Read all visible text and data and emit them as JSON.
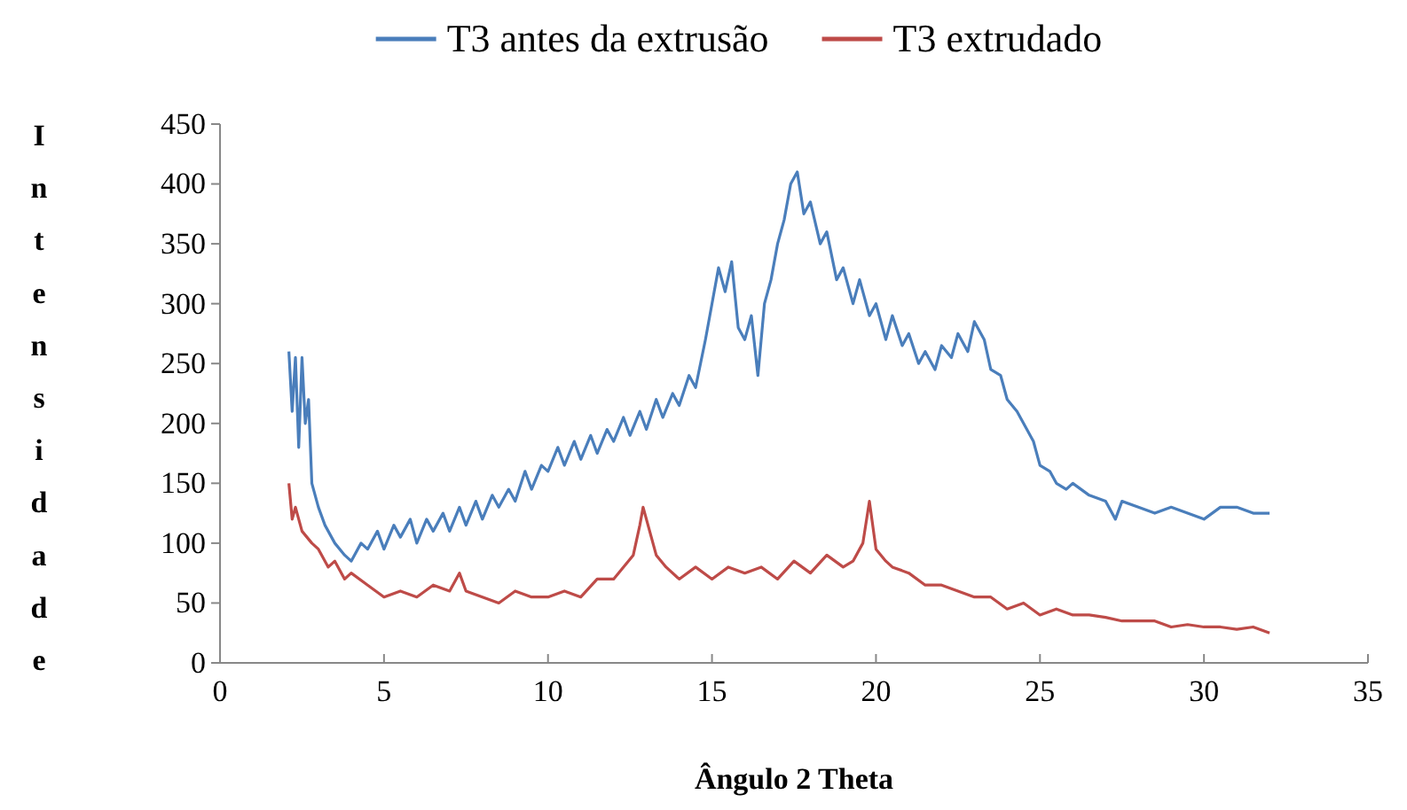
{
  "chart_data": {
    "type": "line",
    "xlabel": "Ângulo 2 Theta",
    "ylabel": "Intensidade",
    "legend": "top",
    "grid": false,
    "marker": "none",
    "line_style": "solid",
    "xlim": [
      0,
      35
    ],
    "xticks": [
      0,
      5,
      10,
      15,
      20,
      25,
      30,
      35
    ],
    "ylim": [
      0,
      450
    ],
    "yticks": [
      0,
      50,
      100,
      150,
      200,
      250,
      300,
      350,
      400,
      450
    ],
    "series": [
      {
        "name": "T3 antes da extrusão",
        "color": "#4a7ebb",
        "x": [
          2.1,
          2.2,
          2.3,
          2.4,
          2.5,
          2.6,
          2.7,
          2.8,
          3.0,
          3.2,
          3.5,
          3.8,
          4.0,
          4.3,
          4.5,
          4.8,
          5.0,
          5.3,
          5.5,
          5.8,
          6.0,
          6.3,
          6.5,
          6.8,
          7.0,
          7.3,
          7.5,
          7.8,
          8.0,
          8.3,
          8.5,
          8.8,
          9.0,
          9.3,
          9.5,
          9.8,
          10.0,
          10.3,
          10.5,
          10.8,
          11.0,
          11.3,
          11.5,
          11.8,
          12.0,
          12.3,
          12.5,
          12.8,
          13.0,
          13.3,
          13.5,
          13.8,
          14.0,
          14.3,
          14.5,
          14.8,
          15.0,
          15.2,
          15.4,
          15.6,
          15.8,
          16.0,
          16.2,
          16.4,
          16.6,
          16.8,
          17.0,
          17.2,
          17.4,
          17.6,
          17.8,
          18.0,
          18.3,
          18.5,
          18.8,
          19.0,
          19.3,
          19.5,
          19.8,
          20.0,
          20.3,
          20.5,
          20.8,
          21.0,
          21.3,
          21.5,
          21.8,
          22.0,
          22.3,
          22.5,
          22.8,
          23.0,
          23.3,
          23.5,
          23.8,
          24.0,
          24.3,
          24.5,
          24.8,
          25.0,
          25.3,
          25.5,
          25.8,
          26.0,
          26.5,
          27.0,
          27.3,
          27.5,
          28.0,
          28.5,
          29.0,
          29.5,
          30.0,
          30.5,
          31.0,
          31.5,
          32.0
        ],
        "values": [
          260,
          210,
          255,
          180,
          255,
          200,
          220,
          150,
          130,
          115,
          100,
          90,
          85,
          100,
          95,
          110,
          95,
          115,
          105,
          120,
          100,
          120,
          110,
          125,
          110,
          130,
          115,
          135,
          120,
          140,
          130,
          145,
          135,
          160,
          145,
          165,
          160,
          180,
          165,
          185,
          170,
          190,
          175,
          195,
          185,
          205,
          190,
          210,
          195,
          220,
          205,
          225,
          215,
          240,
          230,
          270,
          300,
          330,
          310,
          335,
          280,
          270,
          290,
          240,
          300,
          320,
          350,
          370,
          400,
          410,
          375,
          385,
          350,
          360,
          320,
          330,
          300,
          320,
          290,
          300,
          270,
          290,
          265,
          275,
          250,
          260,
          245,
          265,
          255,
          275,
          260,
          285,
          270,
          245,
          240,
          220,
          210,
          200,
          185,
          165,
          160,
          150,
          145,
          150,
          140,
          135,
          120,
          135,
          130,
          125,
          130,
          125,
          120,
          130,
          130,
          125,
          125
        ]
      },
      {
        "name": "T3 extrudado",
        "color": "#be4b48",
        "x": [
          2.1,
          2.2,
          2.3,
          2.5,
          2.8,
          3.0,
          3.3,
          3.5,
          3.8,
          4.0,
          4.5,
          5.0,
          5.5,
          6.0,
          6.5,
          7.0,
          7.3,
          7.5,
          8.0,
          8.5,
          9.0,
          9.5,
          10.0,
          10.5,
          11.0,
          11.5,
          12.0,
          12.3,
          12.6,
          12.8,
          12.9,
          13.1,
          13.3,
          13.6,
          14.0,
          14.5,
          15.0,
          15.5,
          16.0,
          16.5,
          17.0,
          17.5,
          18.0,
          18.5,
          19.0,
          19.3,
          19.6,
          19.8,
          20.0,
          20.3,
          20.5,
          21.0,
          21.5,
          22.0,
          22.5,
          23.0,
          23.5,
          24.0,
          24.5,
          25.0,
          25.5,
          26.0,
          26.5,
          27.0,
          27.5,
          28.0,
          28.5,
          29.0,
          29.5,
          30.0,
          30.5,
          31.0,
          31.5,
          32.0
        ],
        "values": [
          150,
          120,
          130,
          110,
          100,
          95,
          80,
          85,
          70,
          75,
          65,
          55,
          60,
          55,
          65,
          60,
          75,
          60,
          55,
          50,
          60,
          55,
          55,
          60,
          55,
          70,
          70,
          80,
          90,
          115,
          130,
          110,
          90,
          80,
          70,
          80,
          70,
          80,
          75,
          80,
          70,
          85,
          75,
          90,
          80,
          85,
          100,
          135,
          95,
          85,
          80,
          75,
          65,
          65,
          60,
          55,
          55,
          45,
          50,
          40,
          45,
          40,
          40,
          38,
          35,
          35,
          35,
          30,
          32,
          30,
          30,
          28,
          30,
          25
        ]
      }
    ]
  }
}
